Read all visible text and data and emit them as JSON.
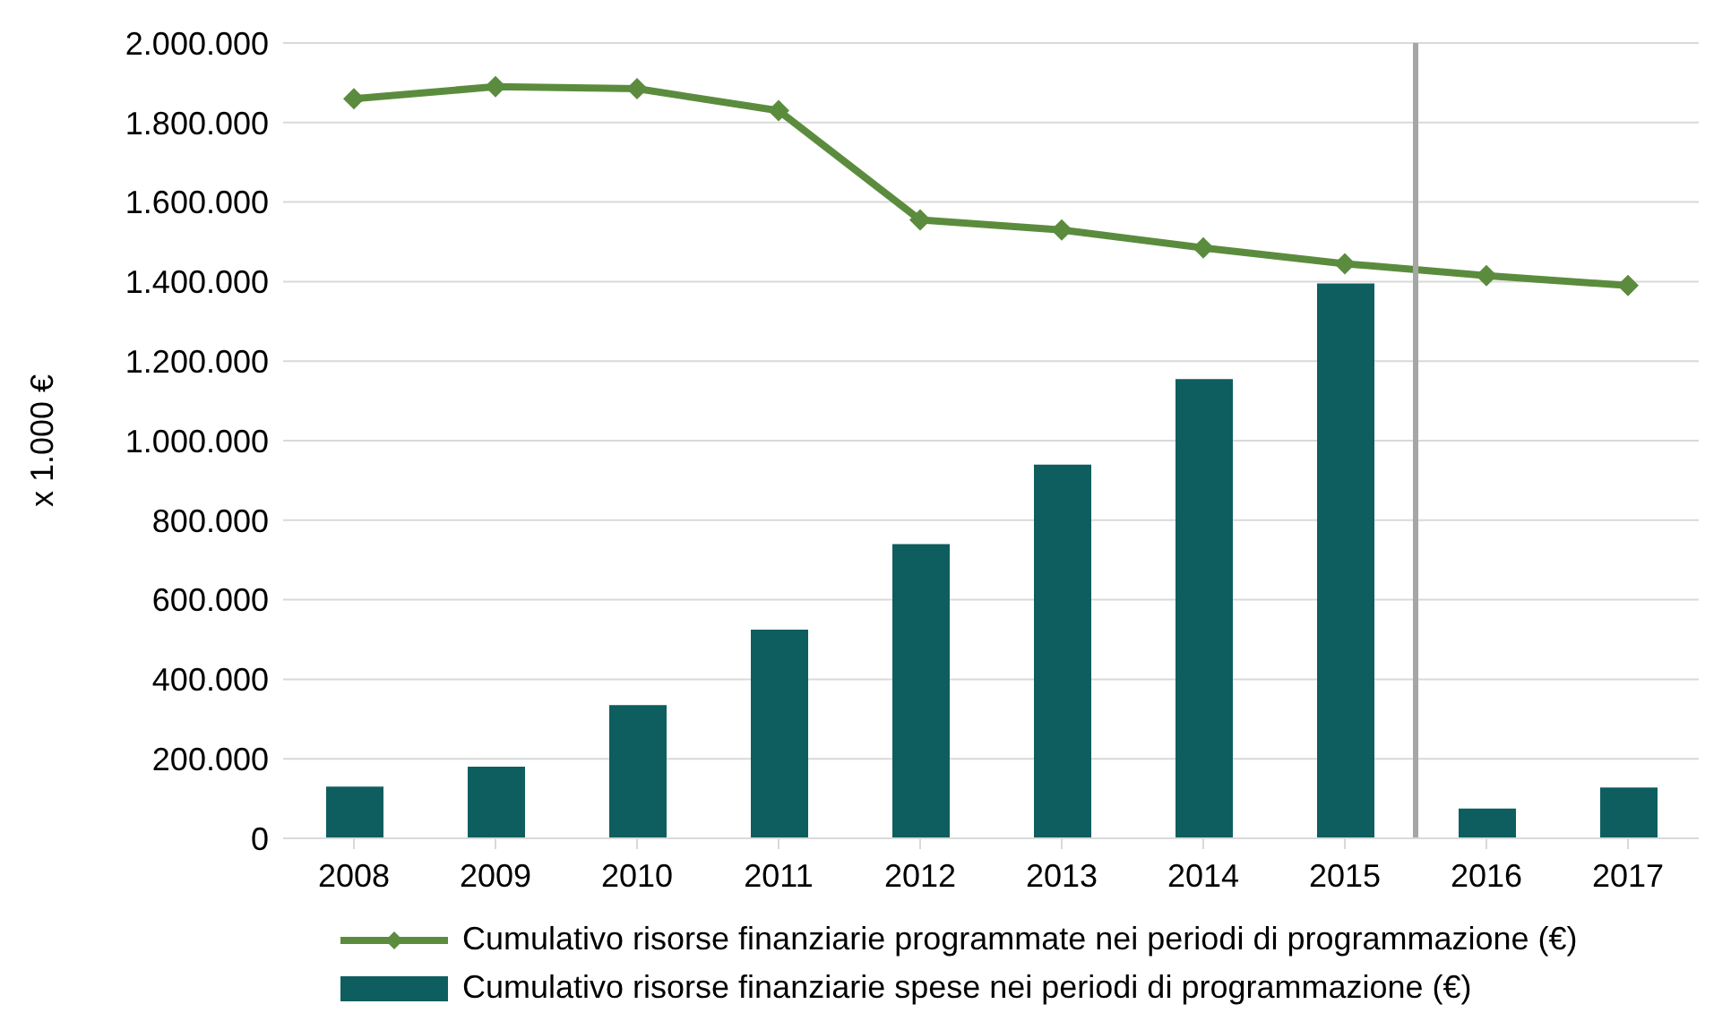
{
  "chart_data": {
    "type": "bar",
    "ylabel": "x 1.000 €",
    "x": [
      2008,
      2009,
      2010,
      2011,
      2012,
      2013,
      2014,
      2015,
      2016,
      2017
    ],
    "xlim": [
      2007.5,
      2017.5
    ],
    "xticks": [
      2008,
      2009,
      2010,
      2011,
      2012,
      2013,
      2014,
      2015,
      2016,
      2017
    ],
    "ylim": [
      0,
      2000000
    ],
    "yticks": [
      {
        "value": 0,
        "label": "0"
      },
      {
        "value": 200000,
        "label": "200.000"
      },
      {
        "value": 400000,
        "label": "400.000"
      },
      {
        "value": 600000,
        "label": "600.000"
      },
      {
        "value": 800000,
        "label": "800.000"
      },
      {
        "value": 1000000,
        "label": "1.000.000"
      },
      {
        "value": 1200000,
        "label": "1.200.000"
      },
      {
        "value": 1400000,
        "label": "1.400.000"
      },
      {
        "value": 1600000,
        "label": "1.600.000"
      },
      {
        "value": 1800000,
        "label": "1.800.000"
      },
      {
        "value": 2000000,
        "label": "2.000.000"
      }
    ],
    "series": [
      {
        "type": "line",
        "name": "Cumulativo risorse finanziarie programmate nei periodi di programmazione (€)",
        "color": "#5b8c3e",
        "marker": "diamond",
        "values": [
          1860000,
          1890000,
          1885000,
          1830000,
          1555000,
          1530000,
          1485000,
          1445000,
          1415000,
          1390000
        ]
      },
      {
        "name": "Cumulativo risorse finanziarie spese nei periodi di programmazione (€)",
        "color": "#0e5e5f",
        "values": [
          130000,
          180000,
          335000,
          525000,
          740000,
          940000,
          1155000,
          1395000,
          75000,
          128000
        ]
      }
    ],
    "ref_lines": [
      {
        "axis": "x",
        "value": 2015.5,
        "color": "#a6a6a6"
      }
    ],
    "grid": "y",
    "legend": "bottom"
  }
}
